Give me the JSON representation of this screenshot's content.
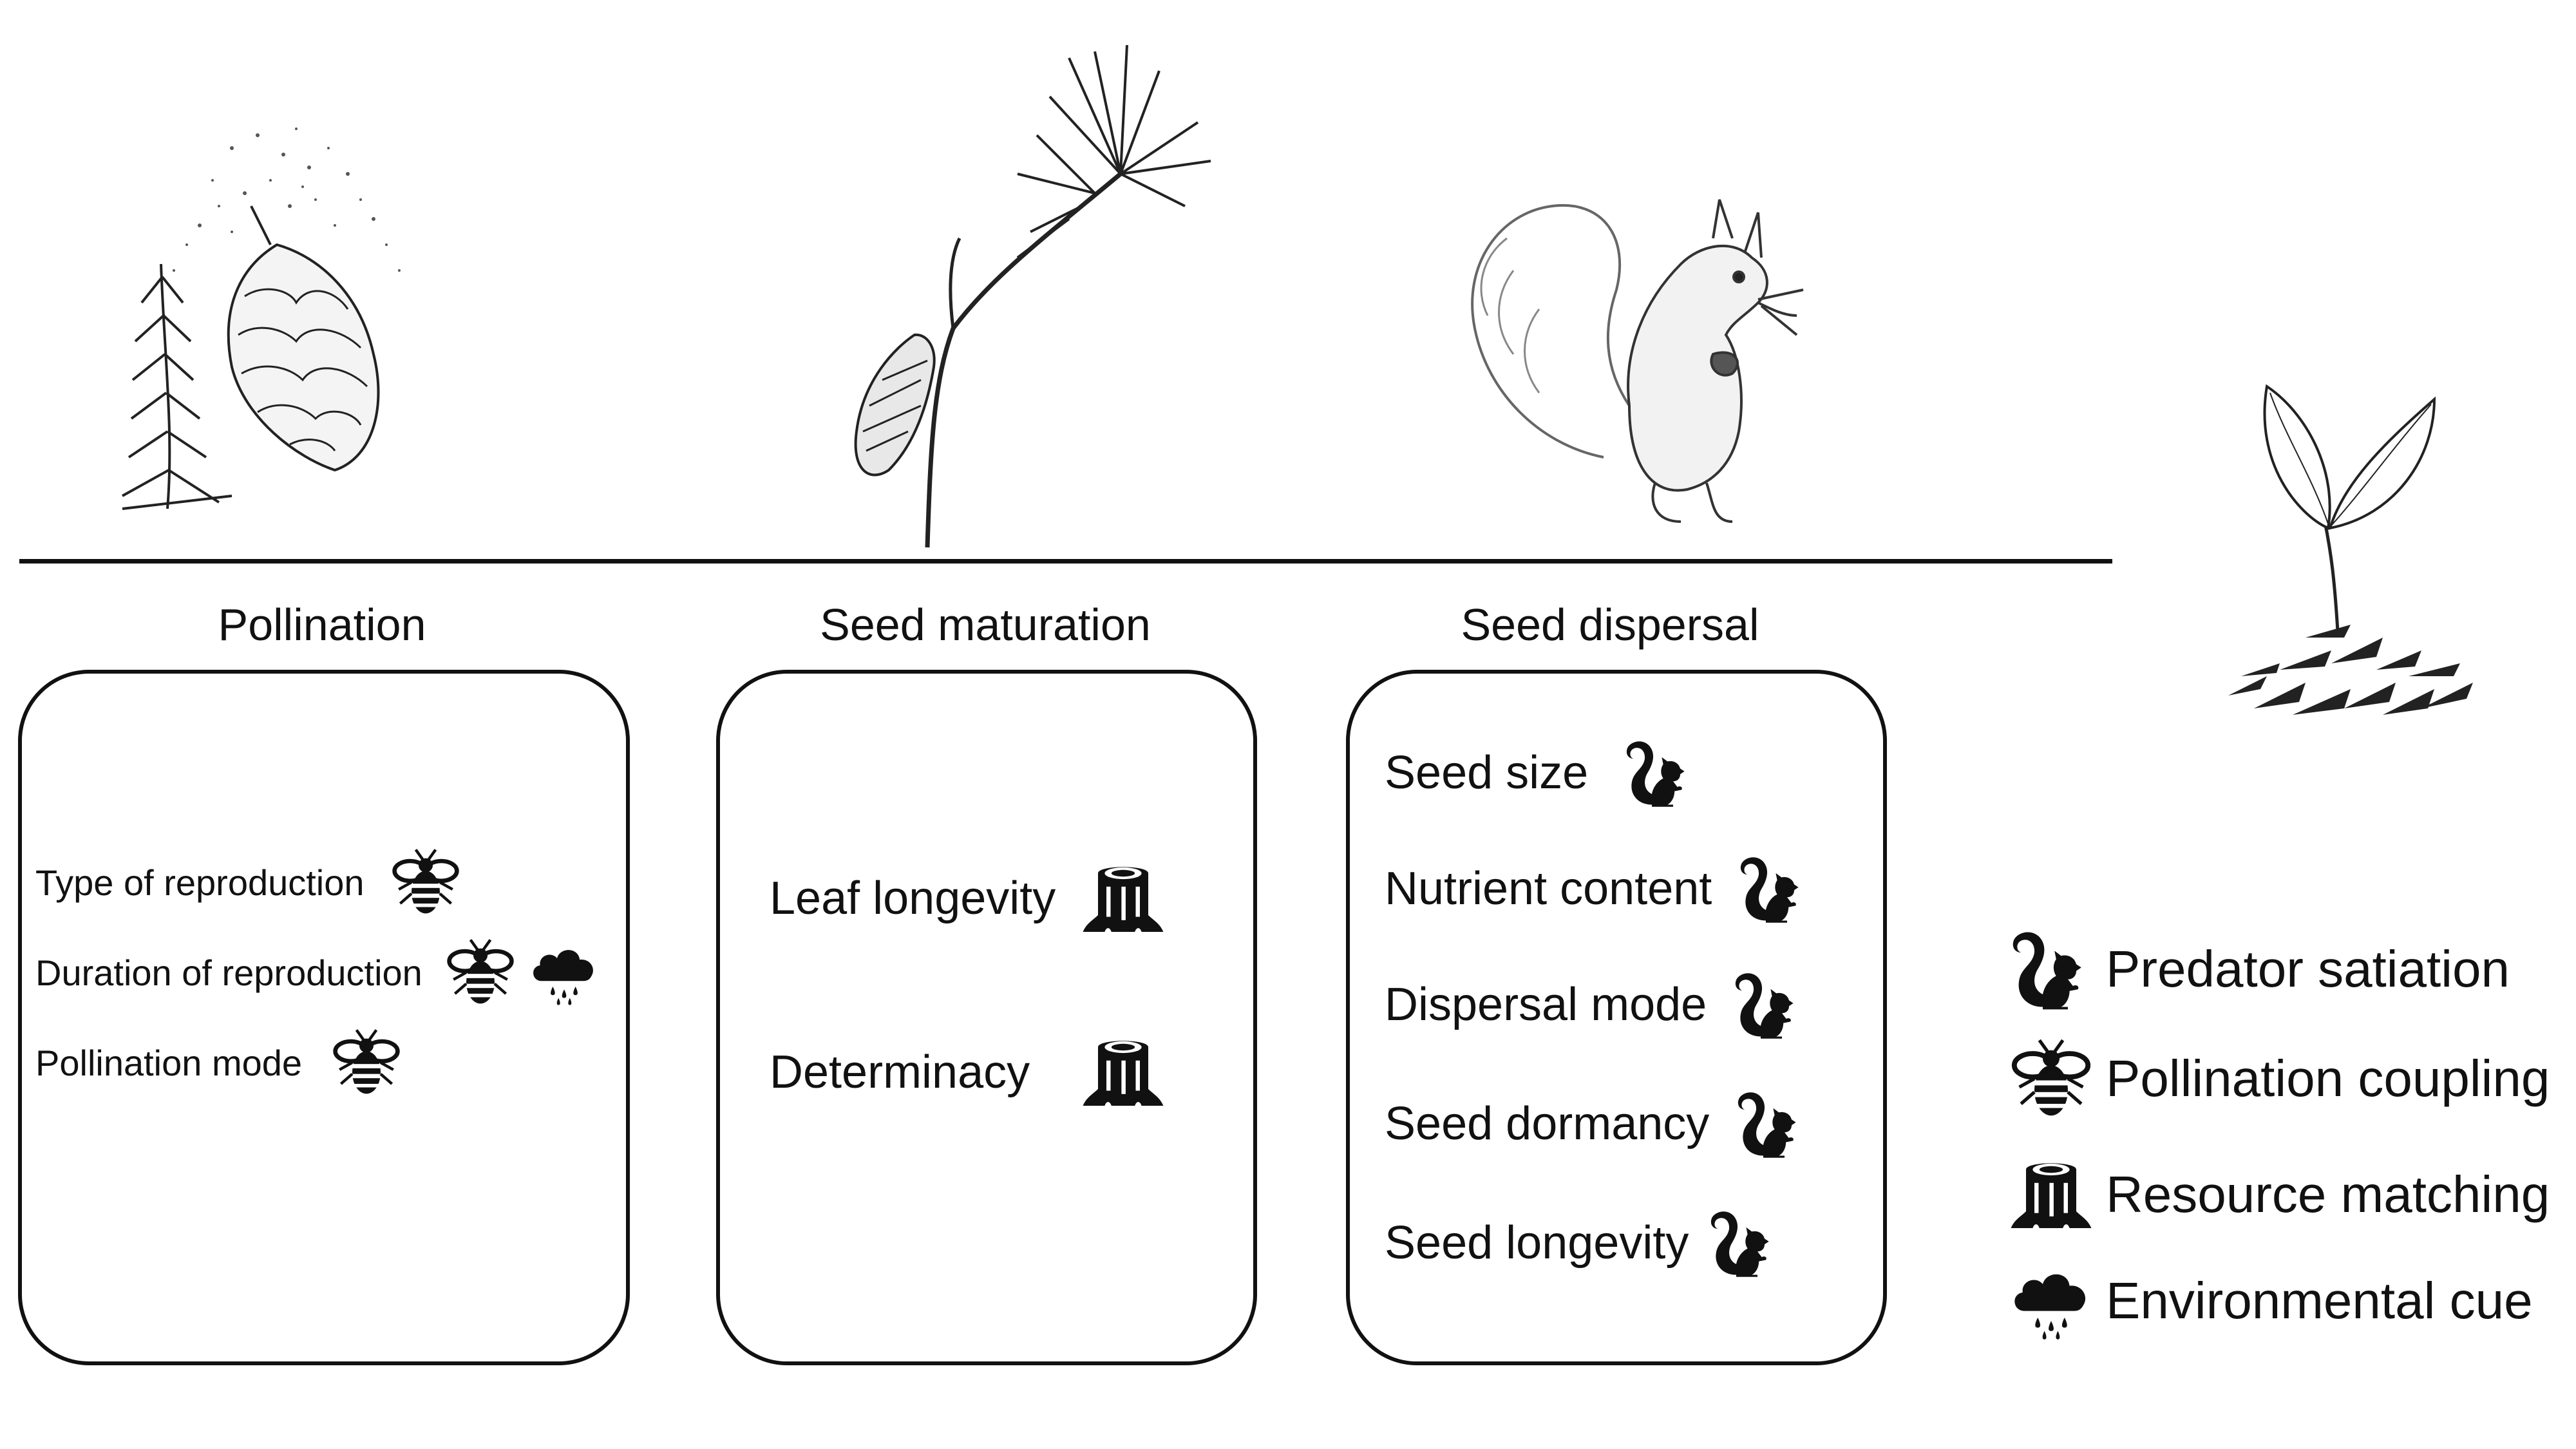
{
  "stages": [
    {
      "title": "Pollination",
      "traits": [
        {
          "label": "Type of reproduction",
          "icons": [
            "bee-icon"
          ]
        },
        {
          "label": "Duration of reproduction",
          "icons": [
            "bee-icon",
            "rain-cloud-icon"
          ]
        },
        {
          "label": "Pollination mode",
          "icons": [
            "bee-icon"
          ]
        }
      ]
    },
    {
      "title": "Seed maturation",
      "traits": [
        {
          "label": "Leaf longevity",
          "icons": [
            "tree-stump-icon"
          ]
        },
        {
          "label": "Determinacy",
          "icons": [
            "tree-stump-icon"
          ]
        }
      ]
    },
    {
      "title": "Seed dispersal",
      "traits": [
        {
          "label": "Seed size",
          "icons": [
            "squirrel-icon"
          ]
        },
        {
          "label": "Nutrient content",
          "icons": [
            "squirrel-icon"
          ]
        },
        {
          "label": "Dispersal mode",
          "icons": [
            "squirrel-icon"
          ]
        },
        {
          "label": "Seed dormancy",
          "icons": [
            "squirrel-icon"
          ]
        },
        {
          "label": "Seed longevity",
          "icons": [
            "squirrel-icon"
          ]
        }
      ]
    }
  ],
  "legend": [
    {
      "icon": "squirrel-icon",
      "label": "Predator satiation"
    },
    {
      "icon": "bee-icon",
      "label": "Pollination coupling"
    },
    {
      "icon": "tree-stump-icon",
      "label": "Resource matching"
    },
    {
      "icon": "rain-cloud-icon",
      "label": "Environmental cue"
    }
  ],
  "colors": {
    "ink": "#111111",
    "background": "#ffffff"
  }
}
